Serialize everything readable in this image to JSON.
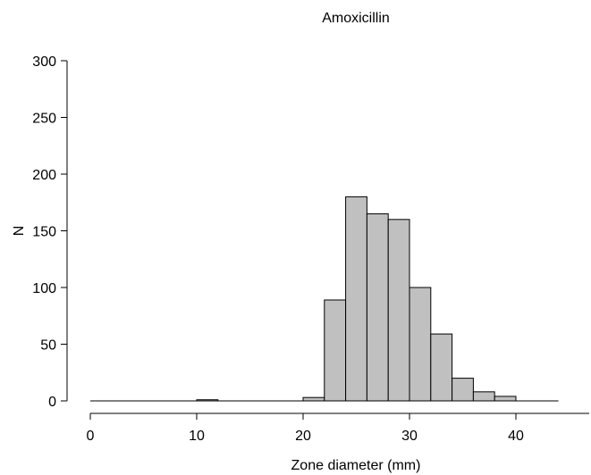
{
  "chart_data": {
    "type": "bar",
    "title": "Amoxicillin",
    "xlabel": "Zone diameter (mm)",
    "ylabel": "N",
    "xlim": [
      0,
      44
    ],
    "ylim": [
      0,
      300
    ],
    "xticks": [
      0,
      10,
      20,
      30,
      40
    ],
    "yticks": [
      0,
      50,
      100,
      150,
      200,
      250,
      300
    ],
    "grid": false,
    "legend": "none",
    "bins": [
      {
        "x0": 0,
        "x1": 2,
        "count": 0
      },
      {
        "x0": 2,
        "x1": 4,
        "count": 0
      },
      {
        "x0": 4,
        "x1": 6,
        "count": 0
      },
      {
        "x0": 6,
        "x1": 8,
        "count": 0
      },
      {
        "x0": 8,
        "x1": 10,
        "count": 0
      },
      {
        "x0": 10,
        "x1": 12,
        "count": 1
      },
      {
        "x0": 12,
        "x1": 14,
        "count": 0
      },
      {
        "x0": 14,
        "x1": 16,
        "count": 0
      },
      {
        "x0": 16,
        "x1": 18,
        "count": 0
      },
      {
        "x0": 18,
        "x1": 20,
        "count": 0
      },
      {
        "x0": 20,
        "x1": 22,
        "count": 3
      },
      {
        "x0": 22,
        "x1": 24,
        "count": 89
      },
      {
        "x0": 24,
        "x1": 26,
        "count": 180
      },
      {
        "x0": 26,
        "x1": 28,
        "count": 165
      },
      {
        "x0": 28,
        "x1": 30,
        "count": 160
      },
      {
        "x0": 30,
        "x1": 32,
        "count": 100
      },
      {
        "x0": 32,
        "x1": 34,
        "count": 59
      },
      {
        "x0": 34,
        "x1": 36,
        "count": 20
      },
      {
        "x0": 36,
        "x1": 38,
        "count": 8
      },
      {
        "x0": 38,
        "x1": 40,
        "count": 4
      },
      {
        "x0": 40,
        "x1": 42,
        "count": 0
      },
      {
        "x0": 42,
        "x1": 44,
        "count": 0
      }
    ],
    "colors": {
      "bar_fill": "#c0c0c0",
      "bar_stroke": "#000000"
    }
  }
}
